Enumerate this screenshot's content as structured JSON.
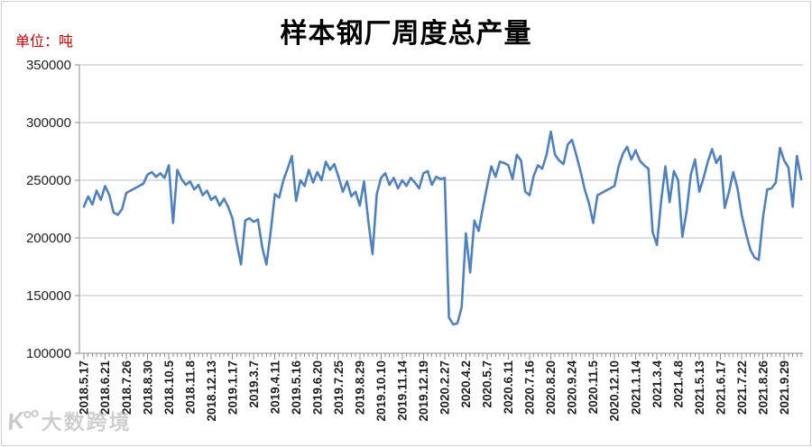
{
  "chart_data": {
    "type": "line",
    "title": "样本钢厂周度总产量",
    "unit_label": "单位：吨",
    "xlabel": "",
    "ylabel": "",
    "legend_position": "none",
    "grid": true,
    "ylim": [
      100000,
      350000
    ],
    "y_ticks": [
      100000,
      150000,
      200000,
      250000,
      300000,
      350000
    ],
    "label_interval": 5,
    "x_labels": [
      "2018.5.17",
      "2018.6.21",
      "2018.7.26",
      "2018.8.30",
      "2018.10.5",
      "2018.11.8",
      "2018.12.13",
      "2019.1.17",
      "2019.3.7",
      "2019.4.11",
      "2019.5.16",
      "2019.6.20",
      "2019.7.25",
      "2019.8.29",
      "2019.10.10",
      "2019.11.14",
      "2019.12.19",
      "2020.2.27",
      "2020.4.2",
      "2020.5.7",
      "2020.6.11",
      "2020.7.16",
      "2020.8.20",
      "2020.9.24",
      "2020.11.5",
      "2020.12.10",
      "2021.1.14",
      "2021.3.4",
      "2021.4.8",
      "2021.5.13",
      "2021.6.17",
      "2021.7.22",
      "2021.8.26",
      "2021.9.29"
    ],
    "values": [
      227000,
      236000,
      229000,
      241000,
      233000,
      245000,
      237000,
      222000,
      220000,
      225000,
      239000,
      241000,
      243000,
      245000,
      247000,
      255000,
      257000,
      253000,
      256000,
      252000,
      263000,
      213000,
      259000,
      251000,
      246000,
      249000,
      242000,
      246000,
      237000,
      241000,
      233000,
      236000,
      228000,
      234000,
      227000,
      217000,
      196000,
      177000,
      215000,
      217000,
      214000,
      216000,
      192000,
      177000,
      205000,
      238000,
      235000,
      250000,
      260000,
      271000,
      232000,
      250000,
      245000,
      259000,
      248000,
      257000,
      250000,
      266000,
      259000,
      264000,
      253000,
      240000,
      249000,
      236000,
      240000,
      228000,
      249000,
      215000,
      186000,
      238000,
      252000,
      256000,
      246000,
      252000,
      243000,
      250000,
      245000,
      252000,
      248000,
      243000,
      256000,
      258000,
      246000,
      253000,
      251000,
      252000,
      131000,
      125000,
      126000,
      140000,
      204000,
      170000,
      215000,
      206000,
      226000,
      245000,
      262000,
      253000,
      266000,
      265000,
      263000,
      251000,
      272000,
      267000,
      240000,
      237000,
      254000,
      263000,
      260000,
      272000,
      292000,
      272000,
      267000,
      264000,
      281000,
      285000,
      272000,
      258000,
      242000,
      230000,
      213000,
      237000,
      239000,
      241000,
      243000,
      245000,
      262000,
      273000,
      279000,
      268000,
      276000,
      267000,
      263000,
      260000,
      205000,
      194000,
      232000,
      262000,
      231000,
      258000,
      250000,
      201000,
      223000,
      255000,
      268000,
      240000,
      252000,
      266000,
      277000,
      265000,
      271000,
      226000,
      240000,
      257000,
      243000,
      220000,
      204000,
      190000,
      183000,
      181000,
      218000,
      242000,
      243000,
      248000,
      278000,
      267000,
      261000,
      227000,
      271000,
      251000
    ],
    "colors": {
      "line": "#4F81BD",
      "unit_label": "#C00000",
      "grid": "#BFBFBF",
      "axis": "#8C8C8C",
      "tick_label": "#1F1F1F",
      "title": "#000000",
      "watermark": "#A8A8A8"
    }
  },
  "watermark": {
    "logo": "K°°",
    "text": "大数跨境"
  }
}
